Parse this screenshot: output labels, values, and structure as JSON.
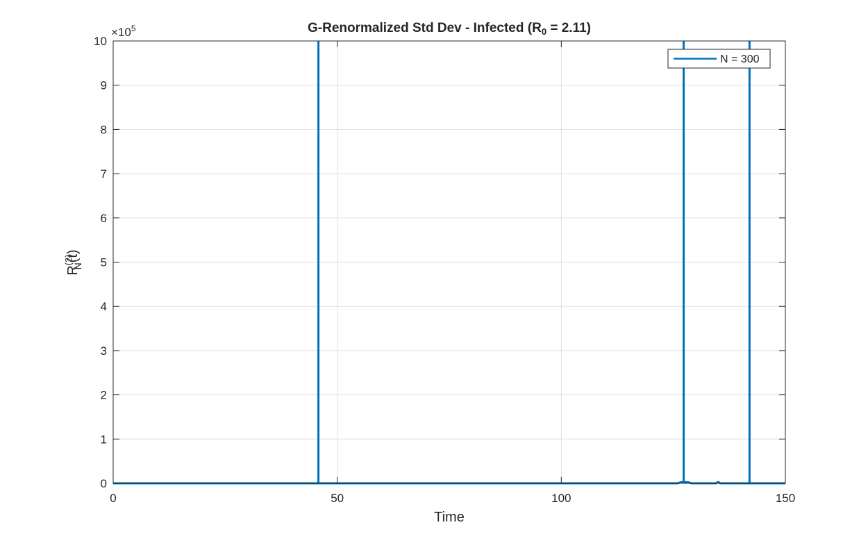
{
  "chart_data": {
    "type": "line",
    "title_main": "G-Renormalized  Std  Dev  -  Infected  (R",
    "title_sub": "0",
    "title_tail": "  =  2.11)",
    "xlabel": "Time",
    "ylabel_main": "R",
    "ylabel_sup": "(2)",
    "ylabel_sub": "N",
    "ylabel_tail": "(t)",
    "y_exponent_base": "×10",
    "y_exponent": "5",
    "xlim": [
      0,
      150
    ],
    "ylim": [
      0,
      10
    ],
    "y_scale_factor": 100000,
    "xticks": [
      0,
      50,
      100,
      150
    ],
    "yticks": [
      0,
      1,
      2,
      3,
      4,
      5,
      6,
      7,
      8,
      9,
      10
    ],
    "xtick_labels": [
      "0",
      "50",
      "100",
      "150"
    ],
    "ytick_labels": [
      "0",
      "1",
      "2",
      "3",
      "4",
      "5",
      "6",
      "7",
      "8",
      "9",
      "10"
    ],
    "grid": true,
    "legend_position": "top-right",
    "series": [
      {
        "name": "N = 300",
        "color": "#0072BD",
        "x": [
          0,
          45.8,
          45.8,
          45.8,
          45.9,
          126,
          126.5,
          127.3,
          127.3,
          127.3,
          128.5,
          129,
          134.5,
          135,
          135.5,
          142,
          142,
          142,
          143,
          150
        ],
        "y": [
          0,
          0,
          10,
          0,
          0,
          0,
          0.02,
          0.03,
          10,
          0.03,
          0.02,
          0,
          0,
          0.03,
          0,
          0,
          10,
          0,
          0,
          0
        ]
      }
    ]
  }
}
